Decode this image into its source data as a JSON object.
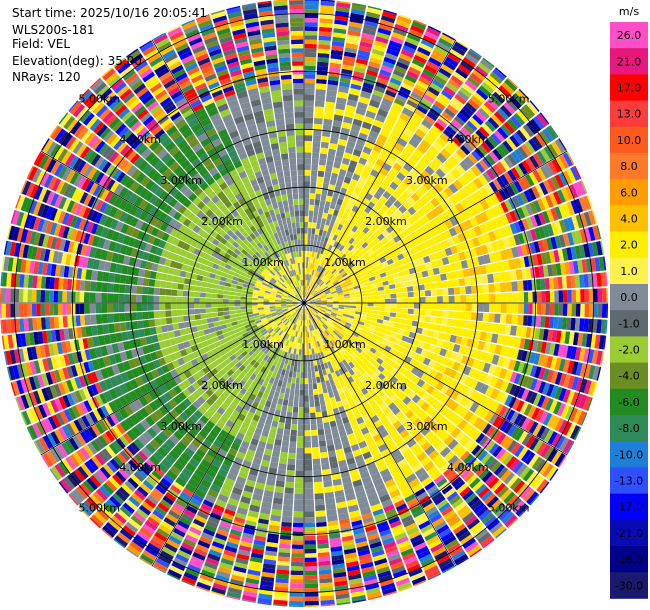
{
  "header": {
    "start_time": "Start time: 2025/10/16 20:05:41",
    "instrument": "WLS200s-181",
    "field": "Field: VEL",
    "elevation": "Elevation(deg): 35.00",
    "nrays": "NRays: 120"
  },
  "chart_data": {
    "type": "heatmap",
    "projection": "polar (PPI scan)",
    "field": "VEL",
    "units": "m/s",
    "n_rays": 120,
    "elevation_deg": 35.0,
    "max_range_km": 5.25,
    "range_ring_labels": [
      "1.00km",
      "2.00km",
      "3.00km",
      "4.00km",
      "5.00km"
    ],
    "range_rings_km": [
      1,
      2,
      3,
      4,
      5
    ],
    "spoke_angles_deg": [
      0,
      30,
      60,
      90,
      120,
      150,
      180,
      210,
      240,
      270,
      300,
      330
    ],
    "colorbar": {
      "label": "m/s",
      "ticks": [
        "26.0",
        "21.0",
        "17.0",
        "13.0",
        "10.0",
        "8.0",
        "6.0",
        "4.0",
        "2.0",
        "1.0",
        "0.0",
        "-1.0",
        "-2.0",
        "-4.0",
        "-6.0",
        "-8.0",
        "-10.0",
        "-13.0",
        "-17.0",
        "-21.0",
        "-26.0",
        "-30.0"
      ],
      "colors": [
        "#ff4fc8",
        "#e8187c",
        "#ff0000",
        "#ff3c3c",
        "#ff5a1e",
        "#ff7a28",
        "#ff9d00",
        "#ffc000",
        "#ffee00",
        "#fff04a",
        "#7f8c98",
        "#5e6a6e",
        "#9acd32",
        "#6b8e23",
        "#228b22",
        "#2e8b57",
        "#1e7fd8",
        "#3050ff",
        "#0000ff",
        "#0a0ab4",
        "#00008b",
        "#191970"
      ]
    },
    "pattern": {
      "near_zero_core_km": [
        0,
        0.9
      ],
      "inner_band_km": [
        0.9,
        2.6
      ],
      "outer_band_km": [
        2.6,
        3.8
      ],
      "noise_start_km": 3.8,
      "positive_side": "east (yellow, +2 to +4 m/s)",
      "negative_side": "west (green, -2 to -8 m/s)",
      "near_zero_axis": "north-south (gray)"
    }
  }
}
